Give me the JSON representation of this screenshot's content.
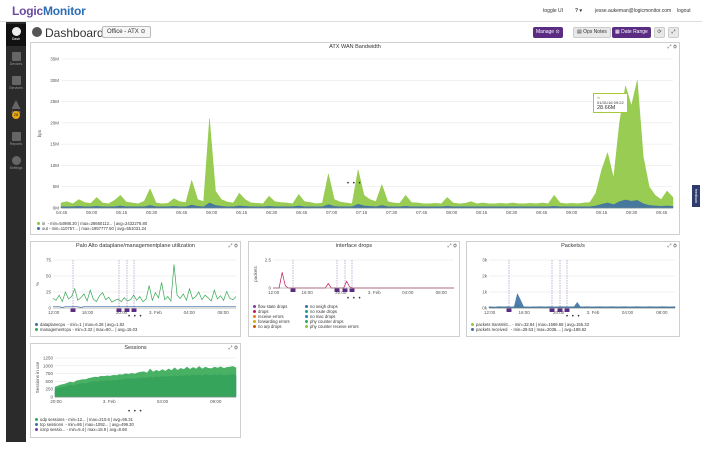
{
  "header": {
    "logo_logic": "Logic",
    "logo_monitor": "Monitor",
    "toggle_ui": "toggle UI",
    "help": "?",
    "user_email": "jesse.aukeman@logicmonitor.com",
    "logout": "logout"
  },
  "sidebar": {
    "items": [
      {
        "label": "Dash"
      },
      {
        "label": "Devices"
      },
      {
        "label": "Services"
      },
      {
        "label": "Alerts"
      },
      {
        "label": "Reports"
      },
      {
        "label": "Settings"
      }
    ],
    "alert_badge": "28"
  },
  "dashboard": {
    "title": "Dashboard:",
    "selected": "Office - ATX",
    "manage_label": "Manage",
    "ops_notes_label": "Ops Notes",
    "date_range_label": "Date Range"
  },
  "feedback_label": "feedback",
  "colors": {
    "accent": "#5a2d82",
    "green": "#8dc63f",
    "blue": "#3e6fa6",
    "pink": "#c2185b"
  },
  "widgets": {
    "wan": {
      "title": "ATX WAN Bandwidth",
      "ylabel": "bps",
      "legend": [
        {
          "name": "in",
          "stats": "min=54988.30",
          "max": "max=28660112...",
          "avg": "avg=2432278.80",
          "color": "#8dc63f"
        },
        {
          "name": "out",
          "stats": "min=110757...",
          "max": "max=1957777.50",
          "avg": "avg=551031.24",
          "color": "#3e6fa6"
        }
      ],
      "tooltip_series": "in",
      "tooltip_time": "01/31/16 09:22",
      "tooltip_value": "28.66M"
    },
    "paloalto": {
      "title": "Palo Alto dataplane/managementplane utilization",
      "ylabel": "%",
      "legend": [
        {
          "name": "dataplanecpu",
          "stats": "min=1",
          "max": "max=6.28",
          "avg": "avg=1.82",
          "color": "#3e6fa6"
        },
        {
          "name": "managementcpu",
          "stats": "min=3.32",
          "max": "max=80...",
          "avg": "avg=15.03",
          "color": "#34a853"
        }
      ]
    },
    "drops": {
      "title": "interface drops",
      "ylabel": "packets",
      "legend_left": [
        "flow state drops",
        "drops",
        "receive errors",
        "forwarding errors",
        "no arp drops"
      ],
      "legend_right": [
        "no neigh drops",
        "no route drops",
        "no mac drops",
        "phy counter drops",
        "phy counter receive errors"
      ],
      "colors_left": [
        "#7b3fa0",
        "#c2185b",
        "#e67e22",
        "#d4ac0d",
        "#d35400"
      ],
      "colors_right": [
        "#3e6fa6",
        "#16a085",
        "#2980b9",
        "#27ae60",
        "#8dc63f"
      ]
    },
    "packets": {
      "title": "Packets/s",
      "legend": [
        {
          "name": "packets transmitt...",
          "stats": "min=32.84",
          "max": "max=1589.68",
          "avg": "avg=155.33",
          "color": "#8dc63f"
        },
        {
          "name": "packets received",
          "stats": "min=29.53",
          "max": "max=2036....",
          "avg": "avg=188.62",
          "color": "#3e6fa6"
        }
      ]
    },
    "sessions": {
      "title": "Sessions",
      "ylabel": "Sessions in use",
      "legend": [
        {
          "name": "udp sessions",
          "stats": "min=12...",
          "max": "max=210.6",
          "avg": "avg=95.31",
          "color": "#34a853"
        },
        {
          "name": "tcp sessions",
          "stats": "min=86",
          "max": "max=1092...",
          "avg": "avg=499.30",
          "color": "#3e6fa6"
        },
        {
          "name": "icmp sessio...",
          "stats": "min=5.4",
          "max": "max=18.9",
          "avg": "avg=8.68",
          "color": "#7b3fa0"
        }
      ]
    }
  },
  "chart_data": [
    {
      "type": "area",
      "title": "ATX WAN Bandwidth",
      "ylabel": "bps",
      "ylim": [
        0,
        35
      ],
      "yunit": "M",
      "yticks": [
        "0M",
        "5M",
        "10M",
        "15M",
        "20M",
        "25M",
        "30M",
        "35M"
      ],
      "xticks": [
        "04:45",
        "05:00",
        "05:15",
        "05:30",
        "05:45",
        "06:00",
        "06:15",
        "06:30",
        "06:45",
        "07:00",
        "07:15",
        "07:30",
        "07:45",
        "08:00",
        "08:15",
        "08:30",
        "08:45",
        "09:00",
        "09:15",
        "09:30",
        "09:45"
      ],
      "series": [
        {
          "name": "in",
          "color": "#8dc63f",
          "values": [
            1.2,
            1.5,
            1.0,
            2.0,
            1.3,
            1.1,
            2.5,
            1.2,
            1.0,
            1.8,
            3.0,
            1.4,
            1.2,
            1.0,
            1.6,
            4.5,
            1.2,
            1.0,
            1.1,
            2.2,
            1.5,
            1.3,
            6.5,
            2.0,
            1.5,
            21.0,
            4.0,
            2.0,
            1.4,
            1.2,
            3.5,
            2.0,
            1.2,
            1.1,
            1.0,
            2.8,
            1.5,
            1.3,
            1.2,
            1.0,
            3.2,
            1.5,
            1.3,
            1.0,
            1.2,
            8.0,
            2.0,
            1.4,
            1.2,
            1.0,
            9.0,
            3.0,
            2.0,
            1.5,
            5.5,
            1.5,
            1.2,
            1.1,
            3.0,
            1.3,
            1.2,
            1.0,
            1.0,
            1.1,
            1.0,
            2.5,
            1.2,
            1.0,
            1.1,
            1.5,
            1.0,
            1.2,
            1.0,
            1.0,
            1.1,
            1.0,
            1.2,
            1.0,
            1.0,
            1.1,
            1.0,
            1.2,
            1.0,
            3.0,
            1.2,
            1.0,
            1.1,
            1.0,
            1.2,
            1.3,
            3.5,
            9.0,
            13.0,
            7.0,
            20.0,
            28.66,
            24.0,
            30.0,
            12.0,
            5.0,
            3.0,
            2.0,
            4.0,
            2.5
          ]
        },
        {
          "name": "out",
          "color": "#3e6fa6",
          "values": [
            0.3,
            0.3,
            0.3,
            0.4,
            0.3,
            0.3,
            0.4,
            0.3,
            0.3,
            0.3,
            0.5,
            0.3,
            0.3,
            0.3,
            0.3,
            0.6,
            0.3,
            0.3,
            0.3,
            0.4,
            0.3,
            0.3,
            0.7,
            0.4,
            0.3,
            1.2,
            0.6,
            0.4,
            0.3,
            0.3,
            0.5,
            0.4,
            0.3,
            0.3,
            0.3,
            0.4,
            0.3,
            0.3,
            0.3,
            0.3,
            0.5,
            0.3,
            0.3,
            0.3,
            0.3,
            0.8,
            0.4,
            0.3,
            0.3,
            0.3,
            0.9,
            0.5,
            0.4,
            0.3,
            0.6,
            0.3,
            0.3,
            0.3,
            0.4,
            0.3,
            0.3,
            0.3,
            0.3,
            0.3,
            0.3,
            0.4,
            0.3,
            0.3,
            0.3,
            0.3,
            0.3,
            0.3,
            0.3,
            0.3,
            0.3,
            0.3,
            0.3,
            0.3,
            0.3,
            0.3,
            0.3,
            0.3,
            0.3,
            0.4,
            0.3,
            0.3,
            0.3,
            0.3,
            0.3,
            0.3,
            0.5,
            0.9,
            1.2,
            0.8,
            1.5,
            1.9,
            1.6,
            1.8,
            1.0,
            0.6,
            0.5,
            0.4,
            0.5,
            0.4
          ]
        }
      ]
    },
    {
      "type": "line",
      "title": "Palo Alto dataplane/managementplane utilization",
      "ylabel": "%",
      "ylim": [
        0,
        75
      ],
      "yticks": [
        "0",
        "25",
        "50",
        "75"
      ],
      "xticks": [
        "12:00",
        "16:00",
        "20:00",
        "3. Feb",
        "04:00",
        "08:00"
      ],
      "series": [
        {
          "name": "dataplanecpu",
          "color": "#3e6fa6",
          "values": [
            2,
            2,
            2,
            1,
            2,
            2,
            2,
            2,
            2,
            1,
            2,
            2,
            2,
            2,
            2,
            2,
            2,
            2,
            2,
            2,
            2,
            2,
            2,
            2,
            2,
            2,
            2,
            2,
            2,
            2,
            2,
            2,
            2,
            2,
            2,
            2,
            2,
            2,
            2,
            2,
            2,
            2,
            2,
            2,
            2,
            2,
            2,
            2,
            2,
            2,
            2,
            2,
            2,
            2,
            2,
            2,
            2,
            2,
            2,
            2
          ]
        },
        {
          "name": "managementcpu",
          "color": "#34a853",
          "values": [
            15,
            12,
            20,
            10,
            25,
            14,
            18,
            30,
            12,
            16,
            22,
            11,
            28,
            14,
            10,
            19,
            24,
            13,
            17,
            9,
            12,
            14,
            10,
            16,
            11,
            13,
            20,
            12,
            18,
            10,
            14,
            35,
            12,
            24,
            16,
            40,
            13,
            18,
            11,
            68,
            20,
            15,
            22,
            12,
            30,
            14,
            18,
            25,
            13,
            20,
            16,
            11,
            28,
            14,
            19,
            12,
            26,
            15,
            13,
            18
          ]
        }
      ]
    },
    {
      "type": "line",
      "title": "interface drops",
      "ylabel": "packets",
      "ylim": [
        0,
        2.5
      ],
      "yticks": [
        "0",
        "2.5"
      ],
      "xticks": [
        "12:00",
        "16:00",
        "20:00",
        "3. Feb",
        "04:00",
        "08:00"
      ],
      "series": [
        {
          "name": "drops",
          "color": "#c2185b",
          "values": [
            0,
            0,
            0,
            1.4,
            0.2,
            0,
            0,
            0,
            0,
            0,
            0,
            0,
            0,
            0,
            0,
            0,
            0,
            0,
            0.4,
            0,
            0,
            0,
            0,
            0,
            0.6,
            0.1,
            0,
            0,
            0,
            0,
            0,
            0,
            0,
            0,
            0,
            0,
            0,
            0,
            0,
            0,
            0,
            0,
            0,
            0,
            0,
            0,
            0,
            0,
            0,
            0,
            0,
            0,
            0,
            0,
            0,
            0,
            0,
            0,
            0,
            0
          ]
        }
      ]
    },
    {
      "type": "area",
      "title": "Packets/s",
      "ylim": [
        0,
        3000
      ],
      "yticks": [
        "0k",
        "1k",
        "2k",
        "3k"
      ],
      "xticks": [
        "12:00",
        "16:00",
        "20:00",
        "3. Feb",
        "04:00",
        "08:00"
      ],
      "series": [
        {
          "name": "packets transmitt...",
          "color": "#8dc63f",
          "values": [
            60,
            55,
            50,
            70,
            60,
            55,
            65,
            50,
            60,
            300,
            60,
            55,
            60,
            50,
            55,
            60,
            70,
            60,
            55,
            65,
            60,
            55,
            60,
            65,
            60,
            55,
            60,
            65,
            70,
            55,
            60,
            65,
            60,
            55,
            60,
            65,
            60,
            55,
            60,
            65,
            60,
            55,
            60,
            65,
            60,
            55,
            60,
            65,
            60,
            55,
            60,
            65,
            60,
            55,
            60,
            65,
            60,
            55,
            60,
            65
          ]
        },
        {
          "name": "packets received",
          "color": "#3e6fa6",
          "values": [
            80,
            70,
            65,
            90,
            80,
            75,
            85,
            70,
            80,
            900,
            500,
            80,
            75,
            70,
            80,
            75,
            90,
            80,
            75,
            85,
            80,
            75,
            80,
            85,
            80,
            75,
            80,
            85,
            350,
            75,
            80,
            85,
            80,
            75,
            80,
            85,
            80,
            75,
            80,
            85,
            80,
            75,
            80,
            85,
            80,
            75,
            80,
            85,
            80,
            75,
            80,
            85,
            80,
            75,
            80,
            85,
            80,
            75,
            80,
            85
          ]
        }
      ]
    },
    {
      "type": "area",
      "title": "Sessions",
      "ylabel": "Sessions in use",
      "ylim": [
        0,
        1250
      ],
      "yticks": [
        "0",
        "250",
        "500",
        "750",
        "1000",
        "1250"
      ],
      "xticks": [
        "20:00",
        "3. Feb",
        "04:00",
        "09:00"
      ],
      "series": [
        {
          "name": "tcp sessions",
          "color": "#3e6fa6",
          "values": [
            250,
            280,
            300,
            320,
            350,
            380,
            360,
            400,
            420,
            440,
            430,
            460,
            480,
            500,
            490,
            520,
            510,
            530,
            520,
            540,
            530,
            560,
            550,
            580,
            570,
            590,
            580,
            600,
            610,
            620,
            600,
            640,
            620,
            650,
            630,
            660,
            640,
            670,
            650,
            680,
            660,
            690,
            670,
            700,
            680,
            710,
            690,
            700,
            680,
            720,
            700,
            690,
            710,
            700,
            720,
            690,
            700,
            710,
            720,
            700
          ]
        },
        {
          "name": "udp sessions",
          "color": "#34a853",
          "values": [
            320,
            360,
            390,
            410,
            450,
            480,
            460,
            520,
            540,
            560,
            560,
            600,
            620,
            640,
            630,
            670,
            660,
            680,
            670,
            700,
            690,
            720,
            710,
            750,
            730,
            760,
            740,
            780,
            800,
            810,
            770,
            900,
            800,
            860,
            820,
            880,
            830,
            900,
            850,
            940,
            860,
            920,
            880,
            960,
            890,
            950,
            900,
            980,
            900,
            960,
            920,
            910,
            960,
            930,
            970,
            920,
            950,
            960,
            980,
            940
          ]
        }
      ]
    }
  ]
}
